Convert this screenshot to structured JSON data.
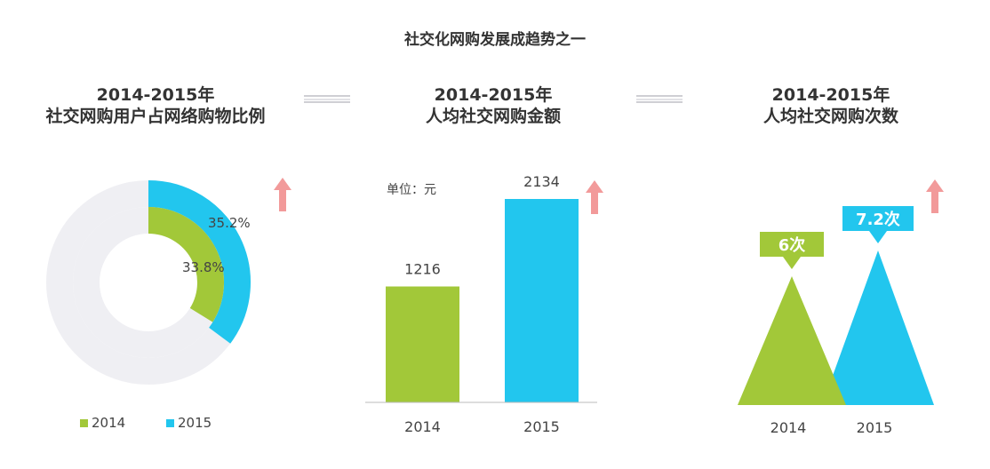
{
  "page_title": "社交化网购发展成趋势之一",
  "colors": {
    "c2014": "#a2c839",
    "c2015": "#22c6ee",
    "track": "#efeff3",
    "arrow": "#f29a9a"
  },
  "chart_data": [
    {
      "type": "pie",
      "title_line1": "2014-2015年",
      "title_line2": "社交网购用户占网络购物比例",
      "series": [
        {
          "name": "2014",
          "value": 33.8,
          "label": "33.8%"
        },
        {
          "name": "2015",
          "value": 35.2,
          "label": "35.2%"
        }
      ],
      "legend": [
        "2014",
        "2015"
      ],
      "legend_position": "bottom"
    },
    {
      "type": "bar",
      "title_line1": "2014-2015年",
      "title_line2": "人均社交网购金额",
      "unit": "单位：元",
      "categories": [
        "2014",
        "2015"
      ],
      "values": [
        1216,
        2134
      ],
      "value_labels": [
        "1216",
        "2134"
      ]
    },
    {
      "type": "bar",
      "title_line1": "2014-2015年",
      "title_line2": "人均社交网购次数",
      "categories": [
        "2014",
        "2015"
      ],
      "values": [
        6,
        7.2
      ],
      "value_labels": [
        "6次",
        "7.2次"
      ]
    }
  ]
}
